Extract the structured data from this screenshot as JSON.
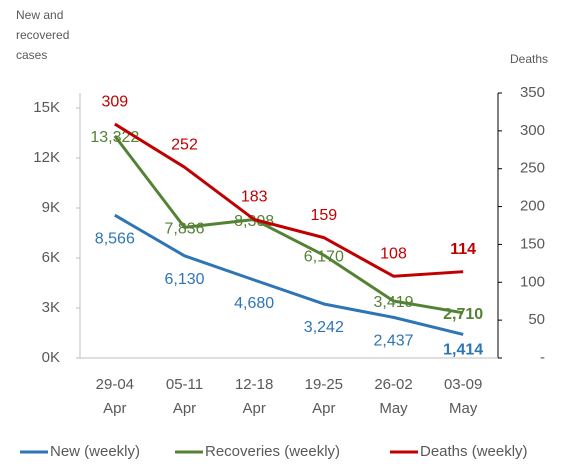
{
  "chart_data": {
    "type": "line",
    "y_label": [
      "New and",
      "recovered",
      "cases"
    ],
    "y2_label": "Deaths",
    "categories": [
      [
        "29-04",
        "Apr"
      ],
      [
        "05-11",
        "Apr"
      ],
      [
        "12-18",
        "Apr"
      ],
      [
        "19-25",
        "Apr"
      ],
      [
        "26-02",
        "May"
      ],
      [
        "03-09",
        "May"
      ]
    ],
    "series": [
      {
        "name": "New (weekly)",
        "color": "#2e75b6",
        "values": [
          8566,
          6130,
          4680,
          3242,
          2437,
          1414
        ],
        "value_labels": [
          "8,566",
          "6,130",
          "4,680",
          "3,242",
          "2,437",
          "1,414"
        ]
      },
      {
        "name": "Recoveries (weekly)",
        "color": "#548235",
        "values": [
          13322,
          7836,
          8308,
          6170,
          3419,
          2710
        ],
        "value_labels": [
          "13,322",
          "7,836",
          "8,308",
          "6,170",
          "3,419",
          "2,710"
        ]
      },
      {
        "name": "Deaths (weekly)",
        "color": "#c00000",
        "axis": "y2",
        "values": [
          309,
          252,
          183,
          159,
          108,
          114
        ]
      }
    ],
    "ylim": [
      0,
      15900
    ],
    "yticks": [
      {
        "value": 0,
        "label": "0K"
      },
      {
        "value": 3000,
        "label": "3K"
      },
      {
        "value": 6000,
        "label": "6K"
      },
      {
        "value": 9000,
        "label": "9K"
      },
      {
        "value": 12000,
        "label": "12K"
      },
      {
        "value": 15000,
        "label": "15K"
      }
    ],
    "y2lim": [
      0,
      350
    ],
    "y2ticks": [
      {
        "value": 0,
        "label": "-"
      },
      50,
      100,
      150,
      200,
      250,
      300,
      350
    ],
    "legend": "bottom"
  }
}
